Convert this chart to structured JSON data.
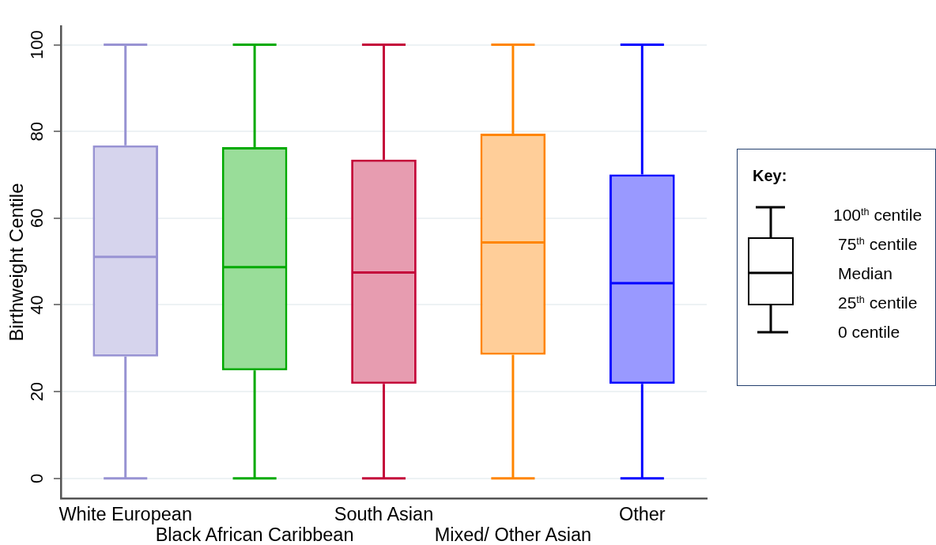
{
  "chart_data": {
    "type": "box",
    "categories": [
      "White European",
      "Black African Caribbean",
      "South Asian",
      "Mixed/ Other Asian",
      "Other"
    ],
    "boxes": [
      {
        "low": 0,
        "q1": 28.1,
        "median": 51.1,
        "q3": 76.8,
        "high": 100
      },
      {
        "low": 0,
        "q1": 24.9,
        "median": 48.7,
        "q3": 76.4,
        "high": 100
      },
      {
        "low": 0,
        "q1": 21.8,
        "median": 47.5,
        "q3": 73.5,
        "high": 100
      },
      {
        "low": 0,
        "q1": 28.5,
        "median": 54.4,
        "q3": 79.5,
        "high": 100
      },
      {
        "low": 0,
        "q1": 21.8,
        "median": 45.0,
        "q3": 70.1,
        "high": 100
      }
    ],
    "colors": [
      "#9893d3",
      "#00aa00",
      "#c4073a",
      "#ff8500",
      "#0000ff"
    ],
    "ylabel": "Birthweight Centile",
    "ylim": [
      -4.6,
      104.3
    ],
    "yticks": [
      0,
      20,
      40,
      60,
      80,
      100
    ],
    "grid": "y",
    "annotations": [
      "Key:",
      "100$^{th}$ centile",
      "75$^{th}$ centile",
      "Median",
      "25$^{th}$ centile",
      "0 centile"
    ]
  }
}
